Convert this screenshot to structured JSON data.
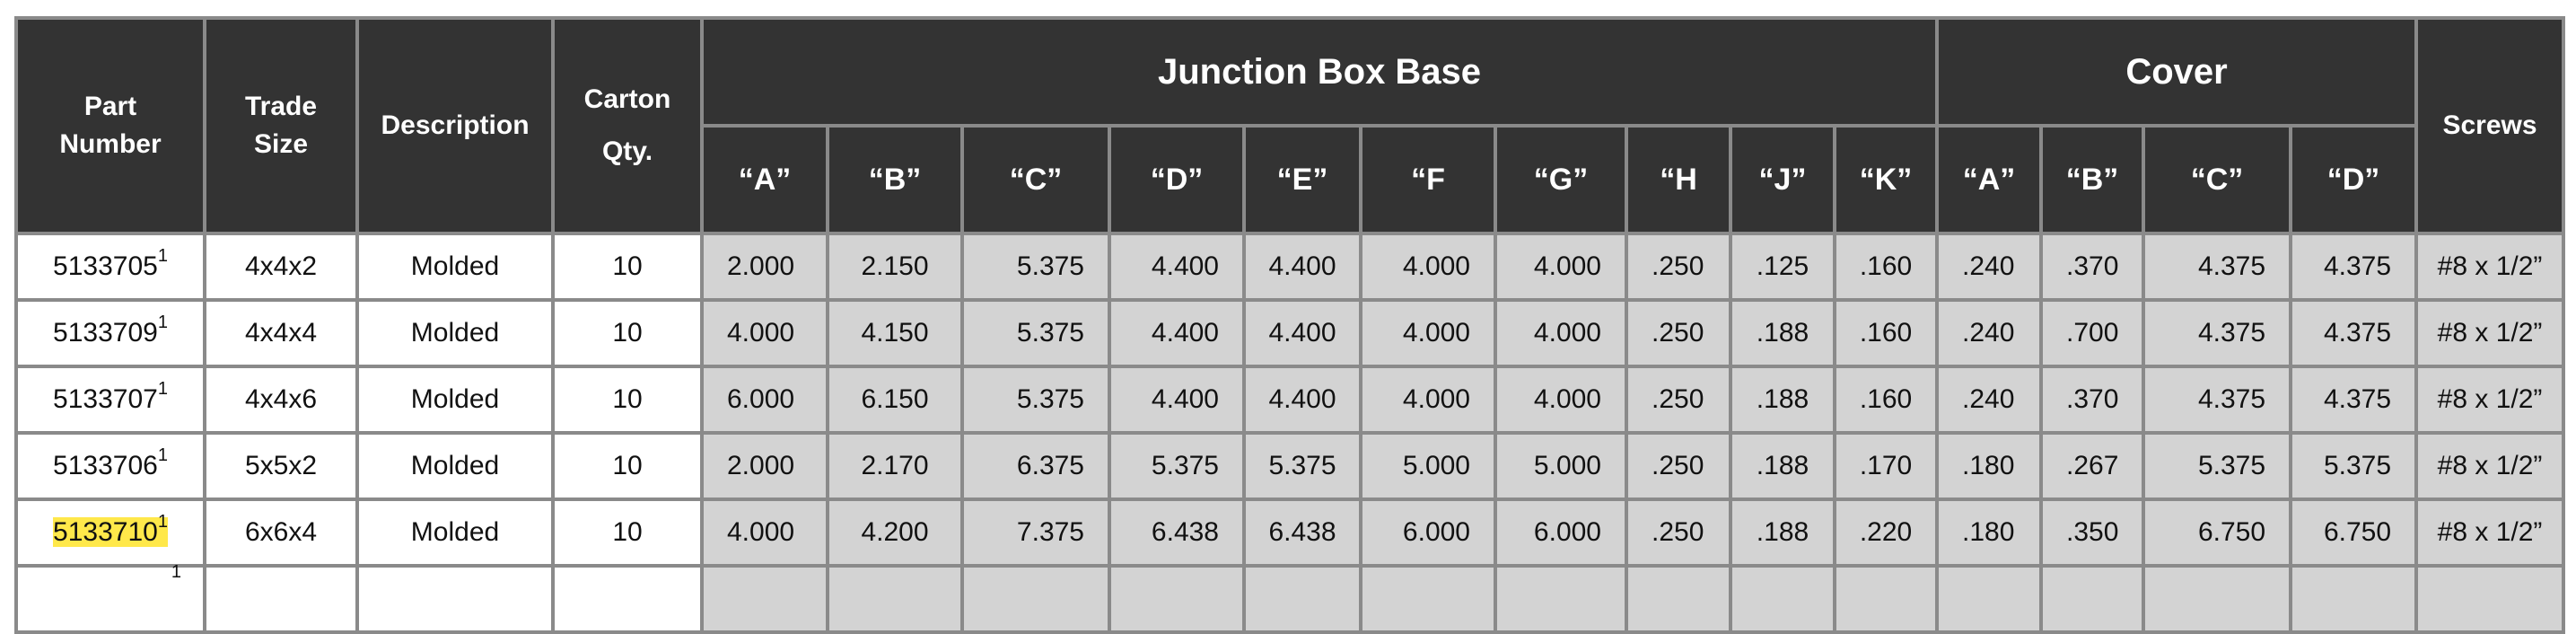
{
  "headers": {
    "part_number": [
      "Part",
      "Number"
    ],
    "trade_size": [
      "Trade",
      "Size"
    ],
    "description": "Description",
    "carton_qty": [
      "Carton",
      "Qty."
    ],
    "junction_box_base": "Junction Box Base",
    "cover": "Cover",
    "screws": "Screws",
    "base_columns": [
      "“A”",
      "“B”",
      "“C”",
      "“D”",
      "“E”",
      "“F",
      "“G”",
      "“H",
      "“J”",
      "“K”"
    ],
    "cover_columns": [
      "“A”",
      "“B”",
      "“C”",
      "“D”"
    ]
  },
  "rows": [
    {
      "part": "5133705",
      "sup": "1",
      "highlight": false,
      "size": "4x4x2",
      "desc": "Molded",
      "qty": "10",
      "base": [
        "2.000",
        "2.150",
        "5.375",
        "4.400",
        "4.400",
        "4.000",
        "4.000",
        ".250",
        ".125",
        ".160"
      ],
      "cover": [
        ".240",
        ".370",
        "4.375",
        "4.375"
      ],
      "screws": "#8 x 1/2”"
    },
    {
      "part": "5133709",
      "sup": "1",
      "highlight": false,
      "size": "4x4x4",
      "desc": "Molded",
      "qty": "10",
      "base": [
        "4.000",
        "4.150",
        "5.375",
        "4.400",
        "4.400",
        "4.000",
        "4.000",
        ".250",
        ".188",
        ".160"
      ],
      "cover": [
        ".240",
        ".700",
        "4.375",
        "4.375"
      ],
      "screws": "#8 x 1/2”"
    },
    {
      "part": "5133707",
      "sup": "1",
      "highlight": false,
      "size": "4x4x6",
      "desc": "Molded",
      "qty": "10",
      "base": [
        "6.000",
        "6.150",
        "5.375",
        "4.400",
        "4.400",
        "4.000",
        "4.000",
        ".250",
        ".188",
        ".160"
      ],
      "cover": [
        ".240",
        ".370",
        "4.375",
        "4.375"
      ],
      "screws": "#8 x 1/2”"
    },
    {
      "part": "5133706",
      "sup": "1",
      "highlight": false,
      "size": "5x5x2",
      "desc": "Molded",
      "qty": "10",
      "base": [
        "2.000",
        "2.170",
        "6.375",
        "5.375",
        "5.375",
        "5.000",
        "5.000",
        ".250",
        ".188",
        ".170"
      ],
      "cover": [
        ".180",
        ".267",
        "5.375",
        "5.375"
      ],
      "screws": "#8 x 1/2”"
    },
    {
      "part": "5133710",
      "sup": "1",
      "highlight": true,
      "size": "6x6x4",
      "desc": "Molded",
      "qty": "10",
      "base": [
        "4.000",
        "4.200",
        "7.375",
        "6.438",
        "6.438",
        "6.000",
        "6.000",
        ".250",
        ".188",
        ".220"
      ],
      "cover": [
        ".180",
        ".350",
        "6.750",
        "6.750"
      ],
      "screws": "#8 x 1/2”"
    }
  ],
  "partial_row": {
    "sup": "1"
  },
  "colors": {
    "header_bg": "#333333",
    "grid": "#8a8a8a",
    "grey_cell": "#d3d3d3",
    "highlight": "#ffe84a"
  }
}
